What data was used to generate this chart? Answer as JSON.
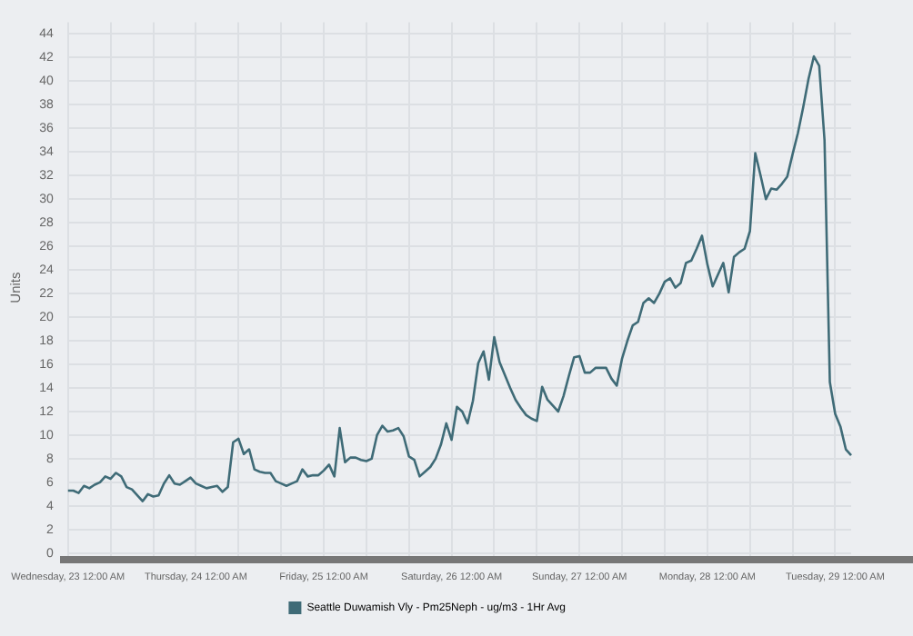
{
  "chart_data": {
    "type": "line",
    "ylabel": "Units",
    "legend": "bottom",
    "grid": true,
    "marker": "none",
    "line_style": "solid",
    "ylim": [
      0,
      45
    ],
    "yticks": [
      0,
      2,
      4,
      6,
      8,
      10,
      12,
      14,
      16,
      18,
      20,
      22,
      24,
      26,
      28,
      30,
      32,
      34,
      36,
      38,
      40,
      42,
      44
    ],
    "categories": [
      "Wednesday, 23 12:00 AM",
      null,
      null,
      null,
      null,
      null,
      null,
      null,
      null,
      null,
      null,
      null,
      null,
      null,
      null,
      null,
      null,
      null,
      null,
      null,
      null,
      null,
      null,
      null,
      "Thursday, 24 12:00 AM",
      null,
      null,
      null,
      null,
      null,
      null,
      null,
      null,
      null,
      null,
      null,
      null,
      null,
      null,
      null,
      null,
      null,
      null,
      null,
      null,
      null,
      null,
      null,
      "Friday, 25 12:00 AM",
      null,
      null,
      null,
      null,
      null,
      null,
      null,
      null,
      null,
      null,
      null,
      null,
      null,
      null,
      null,
      null,
      null,
      null,
      null,
      null,
      null,
      null,
      null,
      "Saturday, 26 12:00 AM",
      null,
      null,
      null,
      null,
      null,
      null,
      null,
      null,
      null,
      null,
      null,
      null,
      null,
      null,
      null,
      null,
      null,
      null,
      null,
      null,
      null,
      null,
      null,
      "Sunday, 27 12:00 AM",
      null,
      null,
      null,
      null,
      null,
      null,
      null,
      null,
      null,
      null,
      null,
      null,
      null,
      null,
      null,
      null,
      null,
      null,
      null,
      null,
      null,
      null,
      null,
      "Monday, 28 12:00 AM",
      null,
      null,
      null,
      null,
      null,
      null,
      null,
      null,
      null,
      null,
      null,
      null,
      null,
      null,
      null,
      null,
      null,
      null,
      null,
      null,
      null,
      null,
      null,
      "Tuesday, 29 12:00 AM",
      null,
      null,
      null
    ],
    "series": [
      {
        "name": "Seattle Duwamish Vly - Pm25Neph - ug/m3 - 1Hr Avg",
        "color": "#3f6b77",
        "values": [
          5.3,
          5.3,
          5.1,
          5.7,
          5.5,
          5.8,
          6.0,
          6.5,
          6.3,
          6.8,
          6.5,
          5.6,
          5.4,
          4.9,
          4.4,
          5.0,
          4.8,
          4.9,
          5.9,
          6.6,
          5.9,
          5.8,
          6.1,
          6.4,
          5.9,
          5.7,
          5.5,
          5.6,
          5.7,
          5.2,
          5.6,
          9.4,
          9.7,
          8.4,
          8.8,
          7.1,
          6.9,
          6.8,
          6.8,
          6.1,
          5.9,
          5.7,
          5.9,
          6.1,
          7.1,
          6.5,
          6.6,
          6.6,
          7.0,
          7.5,
          6.5,
          10.6,
          7.7,
          8.1,
          8.1,
          7.9,
          7.8,
          8.0,
          10.0,
          10.8,
          10.3,
          10.4,
          10.6,
          9.9,
          8.2,
          7.9,
          6.5,
          6.9,
          7.3,
          8.0,
          9.2,
          11.0,
          9.6,
          12.4,
          12.0,
          11.0,
          12.9,
          16.1,
          17.1,
          14.7,
          18.3,
          16.2,
          15.1,
          14.0,
          13.0,
          12.3,
          11.7,
          11.4,
          11.2,
          14.1,
          13.0,
          12.5,
          12.0,
          13.3,
          15.0,
          16.6,
          16.7,
          15.3,
          15.3,
          15.7,
          15.7,
          15.7,
          14.8,
          14.2,
          16.5,
          18.0,
          19.3,
          19.6,
          21.2,
          21.6,
          21.2,
          22.0,
          23.0,
          23.3,
          22.5,
          22.9,
          24.6,
          24.8,
          25.8,
          26.9,
          24.5,
          22.6,
          23.6,
          24.6,
          22.1,
          25.1,
          25.5,
          25.8,
          27.3,
          33.9,
          32.0,
          30.0,
          30.9,
          30.8,
          31.3,
          31.9,
          33.8,
          35.6,
          37.8,
          40.2,
          42.1,
          41.3,
          35.0,
          14.5,
          11.8,
          10.7,
          8.8,
          8.3
        ]
      }
    ]
  }
}
